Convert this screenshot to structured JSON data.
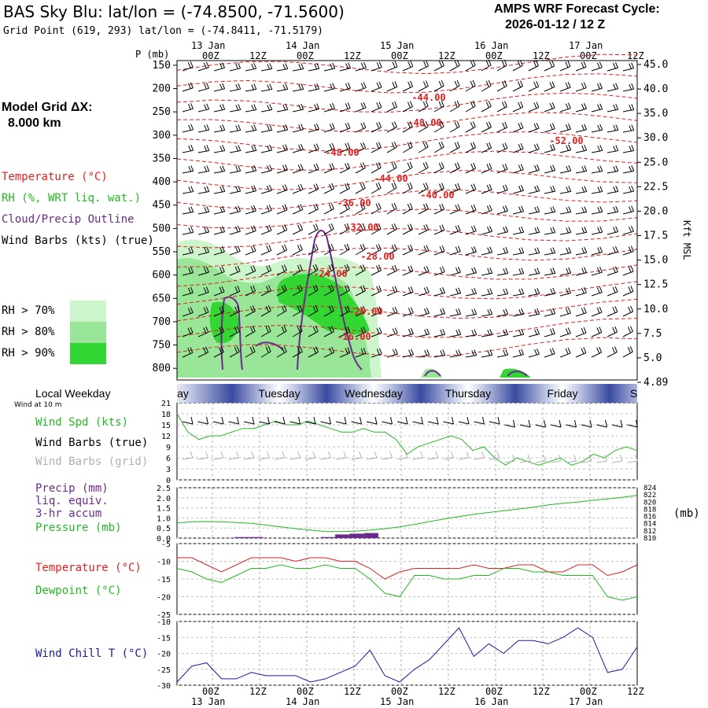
{
  "title": "BAS Sky Blu:  lat/lon = (-74.8500, -71.5600)",
  "subtitle": "Grid Point (619, 293) lat/lon = (-74.8411, -71.5179)",
  "forecast_cycle": {
    "line1": "AMPS WRF Forecast Cycle:",
    "line2": "2026-01-12 / 12  Z"
  },
  "model_grid": {
    "line1": "Model Grid ΔX:",
    "line2": "8.000 km"
  },
  "colors": {
    "temperature": "#e02020",
    "rh": "#22b822",
    "cloud": "#6a2a8a",
    "wind": "#000000",
    "grid_wind": "#a0a0a0",
    "pressure": "#22b822",
    "dewpoint": "#22b822",
    "windchill": "#1a1aa0",
    "rh70": "#ccf5cc",
    "rh80": "#99e699",
    "rh90": "#33d633"
  },
  "legend": {
    "temperature": "Temperature (°C)",
    "rh": "RH (%, WRT liq. wat.)",
    "cloud": "Cloud/Precip Outline",
    "wind": "Wind Barbs (kts) (true)",
    "rh70": "RH > 70%",
    "rh80": "RH > 80%",
    "rh90": "RH > 90%"
  },
  "top_axis": {
    "dates": [
      "13 Jan",
      "14 Jan",
      "15 Jan",
      "16 Jan",
      "17 Jan"
    ],
    "hours": [
      "00Z",
      "12Z",
      "00Z",
      "12Z",
      "00Z",
      "12Z",
      "00Z",
      "12Z",
      "00Z",
      "12Z"
    ],
    "p_label": "P (mb)"
  },
  "bottom_axis": {
    "hours": [
      "00Z",
      "12Z",
      "00Z",
      "12Z",
      "00Z",
      "12Z",
      "00Z",
      "12Z",
      "00Z",
      "12Z"
    ],
    "dates": [
      "13 Jan",
      "14 Jan",
      "15 Jan",
      "16 Jan",
      "17 Jan"
    ]
  },
  "local_weekday": {
    "title": "Local Weekday",
    "wind_note": "Wind at 10 m",
    "days": [
      "Monday",
      "Tuesday",
      "Wednesday",
      "Thursday",
      "Friday",
      "S"
    ]
  },
  "panel_wind": {
    "spd_label": "Wind Spd (kts)",
    "barbs_true": "Wind Barbs (true)",
    "barbs_grid": "Wind Barbs (grid)"
  },
  "panel_precip": {
    "precip_label": "Precip (mm)",
    "liq": "liq. equiv.",
    "accum": "3-hr accum",
    "pressure_label": "Pressure (mb)",
    "unit_right": "(mb)"
  },
  "panel_temp": {
    "temp_label": "Temperature (°C)",
    "dew_label": "Dewpoint (°C)"
  },
  "panel_chill": {
    "label": "Wind Chill T (°C)"
  },
  "right_unit": "Kft MSL",
  "chart_data": [
    {
      "type": "heatmap",
      "title": "BAS Sky Blu:  lat/lon = (-74.8500, -71.5600)",
      "ylabel": "P (mb)",
      "y_ticks": [
        150,
        200,
        250,
        300,
        350,
        400,
        450,
        500,
        550,
        600,
        650,
        700,
        750,
        800
      ],
      "y2_label": "Kft MSL",
      "y2_ticks": [
        "45.0",
        "40.0",
        "35.0",
        "30.0",
        "25.0",
        "22.5",
        "20.0",
        "17.5",
        "15.0",
        "12.5",
        "10.0",
        "7.5",
        "5.0",
        "4.89"
      ],
      "ylim": [
        140,
        825
      ],
      "temperature_contour_labels": [
        "-44.00",
        "-48.00",
        "-52.00",
        "-48.00",
        "-44.00",
        "-40.00",
        "-36.00",
        "-32.00",
        "-28.00",
        "-24.00",
        "-20.00",
        "-16.00"
      ]
    },
    {
      "type": "line",
      "title": "",
      "ylabel": "Wind Spd (kts)",
      "yticks": [
        0,
        3,
        6,
        9,
        12,
        15,
        18,
        21
      ],
      "ylim": [
        0,
        21
      ],
      "series": [
        {
          "name": "Wind Spd (kts)",
          "values": [
            18,
            13,
            11,
            12,
            12,
            13,
            14,
            14,
            15,
            16,
            15,
            15,
            16,
            15,
            14,
            13,
            13,
            14,
            13,
            13,
            11,
            7,
            9,
            10,
            11,
            12,
            11,
            8,
            9,
            6,
            4,
            6,
            5,
            4,
            5,
            6,
            4,
            5,
            7,
            6,
            8,
            9,
            8
          ]
        }
      ]
    },
    {
      "type": "line",
      "title": "",
      "ylabel": "Precip (mm)",
      "yticks": [
        0.0,
        0.5,
        1.0,
        1.5,
        2.0,
        2.5
      ],
      "ylim": [
        0,
        2.5
      ],
      "y2_ticks": [
        810,
        812,
        814,
        816,
        818,
        820,
        822,
        824
      ],
      "series": [
        {
          "name": "Pressure (mb)",
          "values": [
            814.2,
            814.5,
            814.6,
            814.5,
            814.3,
            814.1,
            813.6,
            813.1,
            812.6,
            812.2,
            811.8,
            811.8,
            811.9,
            812.2,
            812.6,
            813.1,
            813.8,
            814.6,
            815.3,
            816.0,
            816.6,
            817.1,
            817.6,
            818.1,
            818.6,
            819.2,
            819.7,
            820.0,
            820.5,
            820.9,
            821.3,
            821.9
          ]
        },
        {
          "name": "Precip (mm)",
          "values": [
            0,
            0,
            0,
            0,
            0.05,
            0.05,
            0,
            0,
            0,
            0,
            0.05,
            0.18,
            0.22,
            0.25,
            0,
            0,
            0,
            0,
            0,
            0,
            0,
            0,
            0,
            0,
            0,
            0,
            0,
            0,
            0,
            0,
            0,
            0
          ]
        }
      ]
    },
    {
      "type": "line",
      "title": "",
      "ylabel": "Temperature (°C)",
      "yticks": [
        -5,
        -10,
        -15,
        -20,
        -25
      ],
      "ylim": [
        -25,
        -5
      ],
      "series": [
        {
          "name": "Temperature (°C)",
          "values": [
            -9,
            -9,
            -11,
            -13,
            -11,
            -9,
            -9,
            -9,
            -10,
            -9,
            -9,
            -10,
            -10,
            -12,
            -15,
            -13,
            -12,
            -12,
            -12,
            -12,
            -11,
            -12,
            -12,
            -11,
            -11,
            -13,
            -13,
            -11,
            -11,
            -14,
            -13,
            -11
          ]
        },
        {
          "name": "Dewpoint (°C)",
          "values": [
            -12,
            -13,
            -15,
            -16,
            -14,
            -12,
            -12,
            -11,
            -12,
            -12,
            -11,
            -12,
            -12,
            -15,
            -19,
            -20,
            -14,
            -14,
            -15,
            -15,
            -14,
            -14,
            -12,
            -12,
            -13,
            -13,
            -14,
            -14,
            -14,
            -20,
            -21,
            -20
          ]
        }
      ]
    },
    {
      "type": "line",
      "title": "",
      "ylabel": "Wind Chill T (°C)",
      "yticks": [
        -10,
        -15,
        -20,
        -25,
        -30
      ],
      "ylim": [
        -30,
        -10
      ],
      "series": [
        {
          "name": "Wind Chill T (°C)",
          "values": [
            -29,
            -24,
            -23,
            -28,
            -28,
            -26,
            -27,
            -27,
            -27,
            -29,
            -28,
            -26,
            -24,
            -19,
            -27,
            -29,
            -25,
            -22,
            -17,
            -12,
            -21,
            -17,
            -20,
            -16,
            -16,
            -17,
            -15,
            -12,
            -15,
            -26,
            -25,
            -18
          ]
        }
      ]
    }
  ]
}
